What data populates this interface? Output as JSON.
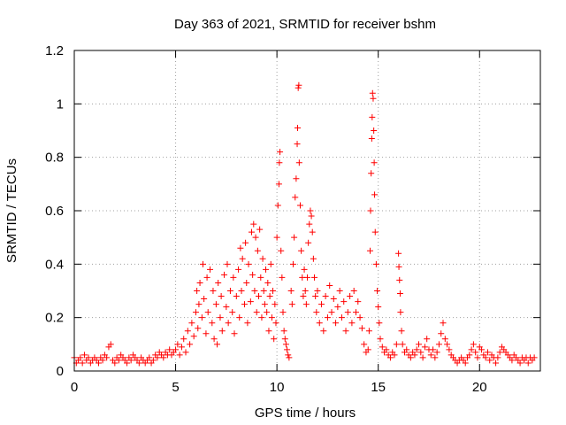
{
  "chart_data": {
    "type": "scatter",
    "title": "Day 363 of 2021, SRMTID for receiver bshm",
    "xlabel": "GPS time / hours",
    "ylabel": "SRMTID / TECUs",
    "xlim": [
      0,
      23
    ],
    "ylim": [
      0,
      1.2
    ],
    "xticks": [
      0,
      5,
      10,
      15,
      20
    ],
    "yticks": [
      0,
      0.2,
      0.4,
      0.6,
      0.8,
      1,
      1.2
    ],
    "xtick_labels": [
      "0",
      "5",
      "10",
      "15",
      "20"
    ],
    "ytick_labels": [
      "0",
      "0.2",
      "0.4",
      "0.6",
      "0.8",
      "1",
      "1.2"
    ],
    "grid": true,
    "marker": "+",
    "color": "#ff0000",
    "series": [
      {
        "name": "SRMTID",
        "points": [
          [
            0.0,
            0.05
          ],
          [
            0.1,
            0.03
          ],
          [
            0.2,
            0.04
          ],
          [
            0.3,
            0.05
          ],
          [
            0.4,
            0.03
          ],
          [
            0.5,
            0.06
          ],
          [
            0.6,
            0.04
          ],
          [
            0.7,
            0.05
          ],
          [
            0.8,
            0.03
          ],
          [
            0.9,
            0.04
          ],
          [
            1.0,
            0.05
          ],
          [
            1.1,
            0.04
          ],
          [
            1.2,
            0.03
          ],
          [
            1.3,
            0.05
          ],
          [
            1.4,
            0.04
          ],
          [
            1.5,
            0.06
          ],
          [
            1.6,
            0.05
          ],
          [
            1.7,
            0.09
          ],
          [
            1.8,
            0.1
          ],
          [
            1.9,
            0.04
          ],
          [
            2.0,
            0.03
          ],
          [
            2.1,
            0.05
          ],
          [
            2.2,
            0.04
          ],
          [
            2.3,
            0.06
          ],
          [
            2.4,
            0.05
          ],
          [
            2.5,
            0.04
          ],
          [
            2.6,
            0.03
          ],
          [
            2.7,
            0.05
          ],
          [
            2.8,
            0.04
          ],
          [
            2.9,
            0.06
          ],
          [
            3.0,
            0.05
          ],
          [
            3.1,
            0.04
          ],
          [
            3.2,
            0.03
          ],
          [
            3.3,
            0.05
          ],
          [
            3.4,
            0.04
          ],
          [
            3.5,
            0.03
          ],
          [
            3.6,
            0.04
          ],
          [
            3.7,
            0.05
          ],
          [
            3.8,
            0.03
          ],
          [
            3.9,
            0.04
          ],
          [
            4.0,
            0.06
          ],
          [
            4.1,
            0.05
          ],
          [
            4.2,
            0.07
          ],
          [
            4.3,
            0.06
          ],
          [
            4.4,
            0.05
          ],
          [
            4.5,
            0.07
          ],
          [
            4.6,
            0.06
          ],
          [
            4.7,
            0.08
          ],
          [
            4.8,
            0.06
          ],
          [
            4.9,
            0.07
          ],
          [
            5.0,
            0.08
          ],
          [
            5.1,
            0.1
          ],
          [
            5.2,
            0.06
          ],
          [
            5.3,
            0.09
          ],
          [
            5.4,
            0.12
          ],
          [
            5.5,
            0.07
          ],
          [
            5.6,
            0.15
          ],
          [
            5.7,
            0.1
          ],
          [
            5.8,
            0.18
          ],
          [
            5.9,
            0.13
          ],
          [
            6.0,
            0.22
          ],
          [
            6.05,
            0.3
          ],
          [
            6.1,
            0.16
          ],
          [
            6.15,
            0.25
          ],
          [
            6.2,
            0.33
          ],
          [
            6.3,
            0.2
          ],
          [
            6.35,
            0.4
          ],
          [
            6.4,
            0.27
          ],
          [
            6.5,
            0.14
          ],
          [
            6.55,
            0.35
          ],
          [
            6.6,
            0.22
          ],
          [
            6.7,
            0.38
          ],
          [
            6.8,
            0.18
          ],
          [
            6.85,
            0.3
          ],
          [
            6.9,
            0.12
          ],
          [
            7.0,
            0.25
          ],
          [
            7.05,
            0.1
          ],
          [
            7.1,
            0.33
          ],
          [
            7.2,
            0.2
          ],
          [
            7.25,
            0.28
          ],
          [
            7.3,
            0.15
          ],
          [
            7.4,
            0.36
          ],
          [
            7.5,
            0.24
          ],
          [
            7.55,
            0.4
          ],
          [
            7.6,
            0.18
          ],
          [
            7.7,
            0.3
          ],
          [
            7.8,
            0.22
          ],
          [
            7.85,
            0.35
          ],
          [
            7.9,
            0.14
          ],
          [
            8.0,
            0.28
          ],
          [
            8.1,
            0.38
          ],
          [
            8.15,
            0.2
          ],
          [
            8.2,
            0.46
          ],
          [
            8.25,
            0.3
          ],
          [
            8.3,
            0.42
          ],
          [
            8.4,
            0.25
          ],
          [
            8.45,
            0.48
          ],
          [
            8.5,
            0.33
          ],
          [
            8.55,
            0.18
          ],
          [
            8.6,
            0.4
          ],
          [
            8.7,
            0.26
          ],
          [
            8.75,
            0.52
          ],
          [
            8.8,
            0.36
          ],
          [
            8.85,
            0.55
          ],
          [
            8.9,
            0.3
          ],
          [
            8.95,
            0.5
          ],
          [
            9.0,
            0.22
          ],
          [
            9.05,
            0.45
          ],
          [
            9.1,
            0.28
          ],
          [
            9.15,
            0.53
          ],
          [
            9.2,
            0.35
          ],
          [
            9.25,
            0.2
          ],
          [
            9.3,
            0.42
          ],
          [
            9.35,
            0.3
          ],
          [
            9.4,
            0.25
          ],
          [
            9.45,
            0.38
          ],
          [
            9.5,
            0.22
          ],
          [
            9.55,
            0.33
          ],
          [
            9.6,
            0.15
          ],
          [
            9.65,
            0.28
          ],
          [
            9.7,
            0.4
          ],
          [
            9.75,
            0.2
          ],
          [
            9.8,
            0.3
          ],
          [
            9.85,
            0.12
          ],
          [
            9.9,
            0.25
          ],
          [
            9.95,
            0.18
          ],
          [
            10.0,
            0.5
          ],
          [
            10.05,
            0.62
          ],
          [
            10.1,
            0.7
          ],
          [
            10.12,
            0.78
          ],
          [
            10.15,
            0.82
          ],
          [
            10.2,
            0.45
          ],
          [
            10.25,
            0.35
          ],
          [
            10.3,
            0.22
          ],
          [
            10.35,
            0.15
          ],
          [
            10.4,
            0.12
          ],
          [
            10.45,
            0.1
          ],
          [
            10.5,
            0.08
          ],
          [
            10.55,
            0.06
          ],
          [
            10.6,
            0.05
          ],
          [
            10.7,
            0.3
          ],
          [
            10.75,
            0.25
          ],
          [
            10.8,
            0.4
          ],
          [
            10.85,
            0.5
          ],
          [
            10.9,
            0.65
          ],
          [
            10.95,
            0.72
          ],
          [
            11.0,
            0.85
          ],
          [
            11.02,
            0.91
          ],
          [
            11.05,
            1.06
          ],
          [
            11.08,
            1.07
          ],
          [
            11.1,
            0.78
          ],
          [
            11.15,
            0.62
          ],
          [
            11.2,
            0.45
          ],
          [
            11.25,
            0.35
          ],
          [
            11.3,
            0.28
          ],
          [
            11.35,
            0.38
          ],
          [
            11.4,
            0.3
          ],
          [
            11.45,
            0.25
          ],
          [
            11.5,
            0.35
          ],
          [
            11.55,
            0.48
          ],
          [
            11.6,
            0.55
          ],
          [
            11.65,
            0.6
          ],
          [
            11.7,
            0.58
          ],
          [
            11.75,
            0.52
          ],
          [
            11.8,
            0.42
          ],
          [
            11.85,
            0.35
          ],
          [
            11.9,
            0.28
          ],
          [
            11.95,
            0.22
          ],
          [
            12.0,
            0.3
          ],
          [
            12.1,
            0.18
          ],
          [
            12.2,
            0.25
          ],
          [
            12.3,
            0.15
          ],
          [
            12.4,
            0.28
          ],
          [
            12.5,
            0.2
          ],
          [
            12.6,
            0.32
          ],
          [
            12.7,
            0.22
          ],
          [
            12.8,
            0.27
          ],
          [
            12.9,
            0.18
          ],
          [
            13.0,
            0.24
          ],
          [
            13.1,
            0.3
          ],
          [
            13.2,
            0.2
          ],
          [
            13.3,
            0.26
          ],
          [
            13.4,
            0.15
          ],
          [
            13.5,
            0.22
          ],
          [
            13.6,
            0.28
          ],
          [
            13.7,
            0.18
          ],
          [
            13.8,
            0.3
          ],
          [
            13.9,
            0.22
          ],
          [
            14.0,
            0.26
          ],
          [
            14.1,
            0.2
          ],
          [
            14.2,
            0.16
          ],
          [
            14.3,
            0.1
          ],
          [
            14.4,
            0.07
          ],
          [
            14.5,
            0.08
          ],
          [
            14.55,
            0.15
          ],
          [
            14.6,
            0.45
          ],
          [
            14.62,
            0.6
          ],
          [
            14.65,
            0.74
          ],
          [
            14.68,
            0.87
          ],
          [
            14.7,
            0.95
          ],
          [
            14.72,
            1.04
          ],
          [
            14.75,
            1.02
          ],
          [
            14.78,
            0.9
          ],
          [
            14.8,
            0.78
          ],
          [
            14.82,
            0.66
          ],
          [
            14.85,
            0.52
          ],
          [
            14.9,
            0.4
          ],
          [
            14.95,
            0.3
          ],
          [
            15.0,
            0.24
          ],
          [
            15.05,
            0.18
          ],
          [
            15.1,
            0.12
          ],
          [
            15.2,
            0.09
          ],
          [
            15.3,
            0.07
          ],
          [
            15.4,
            0.08
          ],
          [
            15.5,
            0.06
          ],
          [
            15.6,
            0.05
          ],
          [
            15.7,
            0.07
          ],
          [
            15.8,
            0.06
          ],
          [
            15.9,
            0.1
          ],
          [
            16.0,
            0.44
          ],
          [
            16.02,
            0.39
          ],
          [
            16.05,
            0.34
          ],
          [
            16.08,
            0.29
          ],
          [
            16.1,
            0.22
          ],
          [
            16.15,
            0.15
          ],
          [
            16.2,
            0.1
          ],
          [
            16.3,
            0.07
          ],
          [
            16.4,
            0.08
          ],
          [
            16.5,
            0.06
          ],
          [
            16.6,
            0.05
          ],
          [
            16.7,
            0.07
          ],
          [
            16.8,
            0.06
          ],
          [
            16.9,
            0.08
          ],
          [
            17.0,
            0.1
          ],
          [
            17.1,
            0.07
          ],
          [
            17.2,
            0.05
          ],
          [
            17.3,
            0.09
          ],
          [
            17.4,
            0.12
          ],
          [
            17.5,
            0.08
          ],
          [
            17.6,
            0.06
          ],
          [
            17.7,
            0.08
          ],
          [
            17.8,
            0.05
          ],
          [
            17.9,
            0.07
          ],
          [
            18.0,
            0.1
          ],
          [
            18.1,
            0.14
          ],
          [
            18.2,
            0.18
          ],
          [
            18.3,
            0.12
          ],
          [
            18.4,
            0.1
          ],
          [
            18.5,
            0.08
          ],
          [
            18.6,
            0.06
          ],
          [
            18.7,
            0.05
          ],
          [
            18.8,
            0.04
          ],
          [
            18.9,
            0.03
          ],
          [
            19.0,
            0.04
          ],
          [
            19.1,
            0.05
          ],
          [
            19.2,
            0.04
          ],
          [
            19.3,
            0.03
          ],
          [
            19.4,
            0.05
          ],
          [
            19.5,
            0.06
          ],
          [
            19.6,
            0.08
          ],
          [
            19.7,
            0.1
          ],
          [
            19.8,
            0.07
          ],
          [
            19.9,
            0.05
          ],
          [
            20.0,
            0.09
          ],
          [
            20.1,
            0.08
          ],
          [
            20.2,
            0.06
          ],
          [
            20.3,
            0.05
          ],
          [
            20.4,
            0.07
          ],
          [
            20.5,
            0.04
          ],
          [
            20.6,
            0.06
          ],
          [
            20.7,
            0.05
          ],
          [
            20.8,
            0.03
          ],
          [
            20.9,
            0.05
          ],
          [
            21.0,
            0.07
          ],
          [
            21.1,
            0.09
          ],
          [
            21.2,
            0.08
          ],
          [
            21.3,
            0.07
          ],
          [
            21.4,
            0.06
          ],
          [
            21.5,
            0.05
          ],
          [
            21.6,
            0.04
          ],
          [
            21.7,
            0.06
          ],
          [
            21.8,
            0.05
          ],
          [
            21.9,
            0.04
          ],
          [
            22.0,
            0.03
          ],
          [
            22.1,
            0.05
          ],
          [
            22.2,
            0.04
          ],
          [
            22.3,
            0.05
          ],
          [
            22.4,
            0.03
          ],
          [
            22.5,
            0.05
          ],
          [
            22.6,
            0.04
          ],
          [
            22.7,
            0.05
          ]
        ]
      }
    ]
  }
}
